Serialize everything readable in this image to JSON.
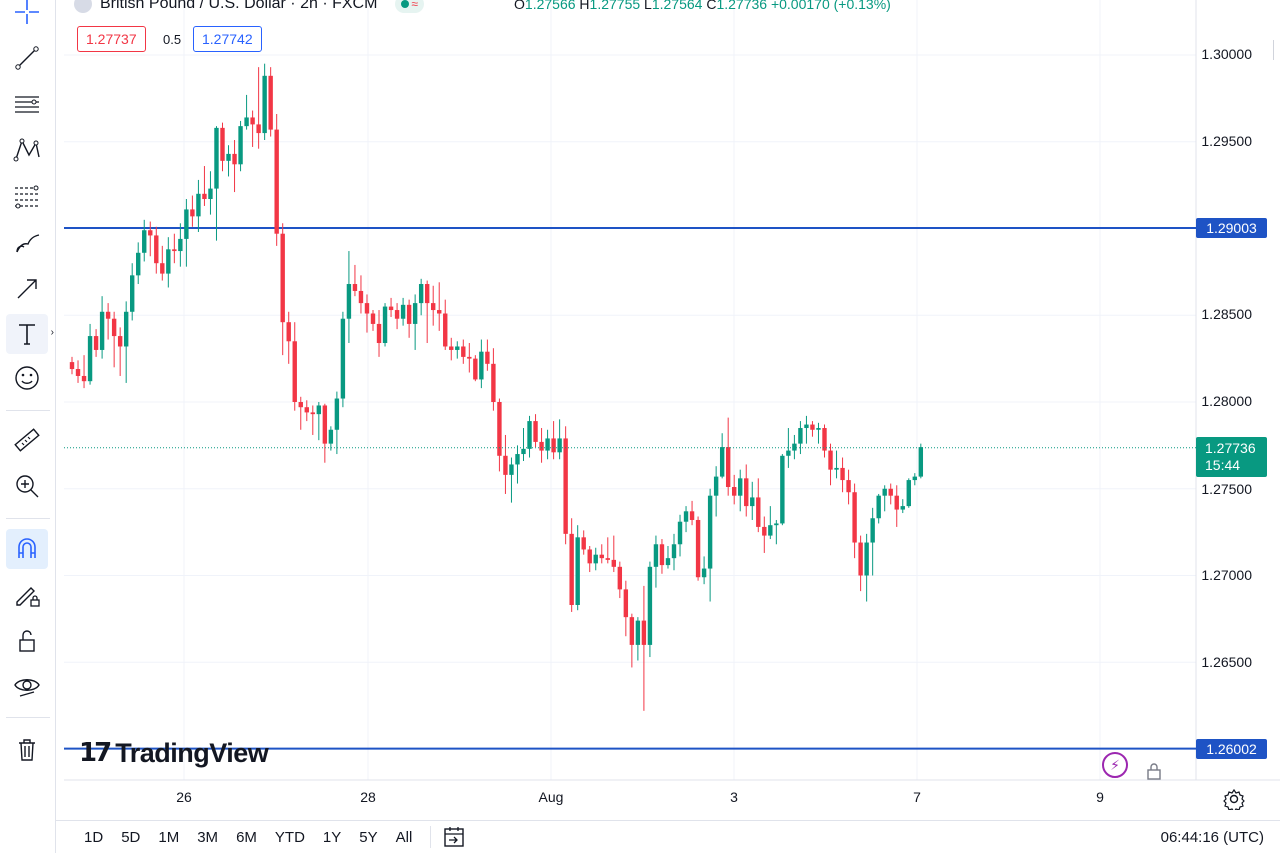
{
  "symbol": {
    "title": "British Pound / U.S. Dollar · 2h · FXCM",
    "ohlc": {
      "open_key": "O",
      "open": "1.27566",
      "high_key": "H",
      "high": "1.27755",
      "low_key": "L",
      "low": "1.27564",
      "close_key": "C",
      "close": "1.27736",
      "change": "+0.00170 (+0.13%)"
    },
    "bid": "1.27737",
    "spread": "0.5",
    "ask": "1.27742"
  },
  "colors": {
    "up": "#089981",
    "down": "#f23645",
    "hline": "#1e53c5",
    "grid": "#f0f3fa"
  },
  "toolbar": {
    "icons": [
      "crosshair-icon",
      "trend-line-icon",
      "horizontal-lines-icon",
      "pattern-icon",
      "fib-icon",
      "brush-icon",
      "arrow-icon",
      "text-icon",
      "emoji-icon",
      "ruler-icon",
      "zoom-in-icon",
      "magnet-icon",
      "lock-drawing-icon",
      "unlock-icon",
      "eye-icon",
      "trash-icon"
    ]
  },
  "price_axis": {
    "labels": [
      "1.30000",
      "1.29500",
      "1.29003",
      "1.28500",
      "1.28000",
      "1.27736",
      "1.27500",
      "1.27000",
      "1.26500",
      "1.26002"
    ],
    "current_timer": "15:44"
  },
  "horizontal_lines": [
    {
      "price": 1.29003,
      "label": "1.29003"
    },
    {
      "price": 1.26002,
      "label": "1.26002"
    }
  ],
  "last_price": {
    "price": 1.27736,
    "label": "1.27736",
    "timer": "15:44"
  },
  "time_axis": {
    "labels": [
      "26",
      "28",
      "Aug",
      "3",
      "7",
      "9"
    ]
  },
  "logo": {
    "mark": "17",
    "word": "TradingView"
  },
  "bottom_bar": {
    "ranges": [
      "1D",
      "5D",
      "1M",
      "3M",
      "6M",
      "YTD",
      "1Y",
      "5Y",
      "All"
    ],
    "clock": "06:44:16 (UTC)"
  },
  "chart_data": {
    "type": "candlestick",
    "ylim": [
      1.2575,
      1.3015
    ],
    "candles": [
      [
        1.2823,
        1.2826,
        1.2816,
        1.2819
      ],
      [
        1.2819,
        1.2824,
        1.2811,
        1.2815
      ],
      [
        1.2815,
        1.2827,
        1.2808,
        1.2812
      ],
      [
        1.2812,
        1.2845,
        1.281,
        1.2838
      ],
      [
        1.2838,
        1.2842,
        1.2826,
        1.283
      ],
      [
        1.283,
        1.2861,
        1.2825,
        1.2852
      ],
      [
        1.2852,
        1.2857,
        1.2836,
        1.2848
      ],
      [
        1.2848,
        1.2852,
        1.282,
        1.2838
      ],
      [
        1.2838,
        1.2843,
        1.2815,
        1.2832
      ],
      [
        1.2832,
        1.2858,
        1.2811,
        1.2852
      ],
      [
        1.2852,
        1.288,
        1.2847,
        1.2873
      ],
      [
        1.2873,
        1.2892,
        1.2868,
        1.2886
      ],
      [
        1.2886,
        1.2905,
        1.2881,
        1.2899
      ],
      [
        1.2899,
        1.2904,
        1.2884,
        1.2896
      ],
      [
        1.2896,
        1.2901,
        1.2874,
        1.288
      ],
      [
        1.288,
        1.289,
        1.287,
        1.2874
      ],
      [
        1.2874,
        1.2895,
        1.2866,
        1.2888
      ],
      [
        1.2888,
        1.2897,
        1.288,
        1.2887
      ],
      [
        1.2887,
        1.2903,
        1.2878,
        1.2894
      ],
      [
        1.2894,
        1.2917,
        1.2878,
        1.2911
      ],
      [
        1.2911,
        1.2919,
        1.2901,
        1.2907
      ],
      [
        1.2907,
        1.2928,
        1.2898,
        1.292
      ],
      [
        1.292,
        1.2936,
        1.2913,
        1.2917
      ],
      [
        1.2917,
        1.2933,
        1.2908,
        1.2923
      ],
      [
        1.2923,
        1.2959,
        1.2893,
        1.2958
      ],
      [
        1.2958,
        1.2961,
        1.2933,
        1.2939
      ],
      [
        1.2939,
        1.2948,
        1.293,
        1.2943
      ],
      [
        1.2943,
        1.2951,
        1.2921,
        1.2937
      ],
      [
        1.2937,
        1.2962,
        1.2933,
        1.2959
      ],
      [
        1.2959,
        1.2977,
        1.2957,
        1.2964
      ],
      [
        1.2964,
        1.2968,
        1.2947,
        1.296
      ],
      [
        1.296,
        1.2993,
        1.2946,
        1.2955
      ],
      [
        1.2955,
        1.2995,
        1.2951,
        1.2988
      ],
      [
        1.2988,
        1.2993,
        1.2953,
        1.2957
      ],
      [
        1.2957,
        1.2966,
        1.289,
        1.2897
      ],
      [
        1.2897,
        1.2903,
        1.2827,
        1.2846
      ],
      [
        1.2846,
        1.2852,
        1.2822,
        1.2835
      ],
      [
        1.2835,
        1.2846,
        1.2795,
        1.28
      ],
      [
        1.28,
        1.2803,
        1.2784,
        1.2797
      ],
      [
        1.2797,
        1.2801,
        1.2789,
        1.2794
      ],
      [
        1.2794,
        1.2798,
        1.2781,
        1.2793
      ],
      [
        1.2793,
        1.28,
        1.2778,
        1.2798
      ],
      [
        1.2798,
        1.2799,
        1.2765,
        1.2776
      ],
      [
        1.2776,
        1.2786,
        1.2772,
        1.2784
      ],
      [
        1.2784,
        1.2806,
        1.277,
        1.2802
      ],
      [
        1.2802,
        1.2852,
        1.2797,
        1.2848
      ],
      [
        1.2848,
        1.2887,
        1.2834,
        1.2868
      ],
      [
        1.2868,
        1.2879,
        1.2861,
        1.2864
      ],
      [
        1.2864,
        1.2873,
        1.2851,
        1.2857
      ],
      [
        1.2857,
        1.2862,
        1.284,
        1.2851
      ],
      [
        1.2851,
        1.2853,
        1.2841,
        1.2845
      ],
      [
        1.2845,
        1.2853,
        1.2826,
        1.2834
      ],
      [
        1.2834,
        1.2857,
        1.2832,
        1.2855
      ],
      [
        1.2855,
        1.286,
        1.2849,
        1.2853
      ],
      [
        1.2853,
        1.2857,
        1.2842,
        1.2848
      ],
      [
        1.2848,
        1.286,
        1.2844,
        1.2856
      ],
      [
        1.2856,
        1.2859,
        1.2837,
        1.2845
      ],
      [
        1.2845,
        1.2862,
        1.283,
        1.2857
      ],
      [
        1.2857,
        1.2871,
        1.285,
        1.2868
      ],
      [
        1.2868,
        1.287,
        1.2834,
        1.2857
      ],
      [
        1.2857,
        1.2867,
        1.2844,
        1.2853
      ],
      [
        1.2853,
        1.2869,
        1.2841,
        1.2851
      ],
      [
        1.2851,
        1.2859,
        1.283,
        1.2832
      ],
      [
        1.2832,
        1.2837,
        1.2824,
        1.283
      ],
      [
        1.283,
        1.2835,
        1.2825,
        1.2832
      ],
      [
        1.2832,
        1.2836,
        1.2822,
        1.2826
      ],
      [
        1.2826,
        1.2834,
        1.2817,
        1.2825
      ],
      [
        1.2825,
        1.2827,
        1.2812,
        1.2813
      ],
      [
        1.2813,
        1.2836,
        1.2808,
        1.2829
      ],
      [
        1.2829,
        1.2836,
        1.2818,
        1.2822
      ],
      [
        1.2822,
        1.2831,
        1.2795,
        1.28
      ],
      [
        1.28,
        1.2802,
        1.276,
        1.2769
      ],
      [
        1.2769,
        1.2781,
        1.2747,
        1.2758
      ],
      [
        1.2758,
        1.2768,
        1.2742,
        1.2764
      ],
      [
        1.2764,
        1.2775,
        1.2753,
        1.277
      ],
      [
        1.277,
        1.2785,
        1.2766,
        1.2773
      ],
      [
        1.2773,
        1.2792,
        1.2768,
        1.2789
      ],
      [
        1.2789,
        1.2793,
        1.2774,
        1.2777
      ],
      [
        1.2777,
        1.2785,
        1.2765,
        1.2772
      ],
      [
        1.2772,
        1.2784,
        1.2767,
        1.2779
      ],
      [
        1.2779,
        1.2789,
        1.2767,
        1.2771
      ],
      [
        1.2771,
        1.279,
        1.2767,
        1.2779
      ],
      [
        1.2779,
        1.2786,
        1.2718,
        1.2724
      ],
      [
        1.2724,
        1.2733,
        1.2679,
        1.2683
      ],
      [
        1.2683,
        1.2729,
        1.268,
        1.2722
      ],
      [
        1.2722,
        1.2726,
        1.2712,
        1.2715
      ],
      [
        1.2715,
        1.2717,
        1.2702,
        1.2707
      ],
      [
        1.2707,
        1.2716,
        1.2703,
        1.2712
      ],
      [
        1.2712,
        1.2718,
        1.2707,
        1.271
      ],
      [
        1.271,
        1.2722,
        1.2707,
        1.2709
      ],
      [
        1.2709,
        1.2723,
        1.2702,
        1.2705
      ],
      [
        1.2705,
        1.2708,
        1.2687,
        1.2692
      ],
      [
        1.2692,
        1.2697,
        1.2665,
        1.2676
      ],
      [
        1.2676,
        1.2678,
        1.2647,
        1.266
      ],
      [
        1.266,
        1.2676,
        1.2651,
        1.2674
      ],
      [
        1.2674,
        1.2694,
        1.2622,
        1.266
      ],
      [
        1.266,
        1.2708,
        1.2653,
        1.2705
      ],
      [
        1.2705,
        1.2723,
        1.2693,
        1.2718
      ],
      [
        1.2718,
        1.2721,
        1.2701,
        1.2706
      ],
      [
        1.2706,
        1.2717,
        1.2704,
        1.271
      ],
      [
        1.271,
        1.2724,
        1.2703,
        1.2718
      ],
      [
        1.2718,
        1.2735,
        1.2711,
        1.2731
      ],
      [
        1.2731,
        1.274,
        1.2725,
        1.2737
      ],
      [
        1.2737,
        1.2743,
        1.2729,
        1.2732
      ],
      [
        1.2732,
        1.2734,
        1.2697,
        1.2699
      ],
      [
        1.2699,
        1.2711,
        1.2695,
        1.2704
      ],
      [
        1.2704,
        1.275,
        1.2685,
        1.2746
      ],
      [
        1.2746,
        1.2763,
        1.2734,
        1.2757
      ],
      [
        1.2757,
        1.2782,
        1.2756,
        1.2774
      ],
      [
        1.2774,
        1.2791,
        1.2746,
        1.2751
      ],
      [
        1.2751,
        1.2758,
        1.2741,
        1.2746
      ],
      [
        1.2746,
        1.2761,
        1.2737,
        1.2756
      ],
      [
        1.2756,
        1.2764,
        1.2734,
        1.274
      ],
      [
        1.274,
        1.2754,
        1.2732,
        1.2745
      ],
      [
        1.2745,
        1.2756,
        1.2725,
        1.2728
      ],
      [
        1.2728,
        1.2734,
        1.2713,
        1.2723
      ],
      [
        1.2723,
        1.274,
        1.2721,
        1.2729
      ],
      [
        1.2729,
        1.2732,
        1.2718,
        1.273
      ],
      [
        1.273,
        1.277,
        1.2729,
        1.2769
      ],
      [
        1.2769,
        1.2785,
        1.2762,
        1.2772
      ],
      [
        1.2772,
        1.2781,
        1.2767,
        1.2776
      ],
      [
        1.2776,
        1.2789,
        1.277,
        1.2785
      ],
      [
        1.2785,
        1.2792,
        1.2776,
        1.2787
      ],
      [
        1.2787,
        1.2789,
        1.278,
        1.2784
      ],
      [
        1.2784,
        1.2788,
        1.2776,
        1.2785
      ],
      [
        1.2785,
        1.2787,
        1.2768,
        1.2772
      ],
      [
        1.2772,
        1.2776,
        1.2752,
        1.2761
      ],
      [
        1.2761,
        1.2772,
        1.2756,
        1.2762
      ],
      [
        1.2762,
        1.2768,
        1.2748,
        1.2755
      ],
      [
        1.2755,
        1.2761,
        1.2741,
        1.2748
      ],
      [
        1.2748,
        1.2753,
        1.271,
        1.2719
      ],
      [
        1.2719,
        1.2723,
        1.2691,
        1.27
      ],
      [
        1.27,
        1.2724,
        1.2685,
        1.2719
      ],
      [
        1.2719,
        1.2739,
        1.27,
        1.2733
      ],
      [
        1.2733,
        1.2747,
        1.273,
        1.2746
      ],
      [
        1.2746,
        1.2752,
        1.2737,
        1.275
      ],
      [
        1.275,
        1.2753,
        1.2741,
        1.2746
      ],
      [
        1.2746,
        1.2752,
        1.2728,
        1.2738
      ],
      [
        1.2738,
        1.2744,
        1.2736,
        1.274
      ],
      [
        1.274,
        1.2756,
        1.2739,
        1.2755
      ],
      [
        1.2755,
        1.2759,
        1.2752,
        1.2757
      ],
      [
        1.2757,
        1.2776,
        1.2756,
        1.2774
      ]
    ]
  }
}
